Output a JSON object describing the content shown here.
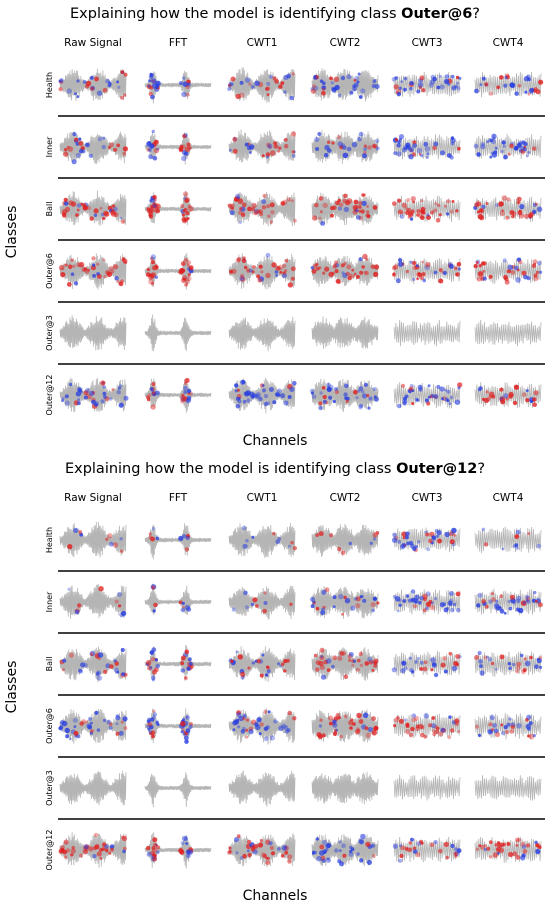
{
  "colors": {
    "signal": "#b5b5b5",
    "positive": "#e02020",
    "negative": "#2a3fe0",
    "separator": "#000000"
  },
  "chart_data": [
    {
      "type": "heatmap",
      "title_prefix": "Explaining how the model is identifying class ",
      "title_class": "Outer@6",
      "title_suffix": "?",
      "xlabel": "Channels",
      "ylabel": "Classes",
      "columns": [
        "Raw Signal",
        "FFT",
        "CWT1",
        "CWT2",
        "CWT3",
        "CWT4"
      ],
      "rows": [
        "Health",
        "Inner",
        "Ball",
        "Outer@6",
        "Outer@3",
        "Outer@12"
      ],
      "attribution_dominant": [
        [
          "mixed",
          "mixed",
          "mixed",
          "negative",
          "negative",
          "mixed"
        ],
        [
          "mixed",
          "mixed",
          "mixed",
          "mixed",
          "negative",
          "negative"
        ],
        [
          "positive",
          "positive",
          "positive",
          "positive",
          "positive",
          "positive"
        ],
        [
          "positive",
          "positive",
          "positive",
          "positive",
          "positive",
          "positive"
        ],
        [
          "none",
          "none",
          "none",
          "none",
          "none",
          "none"
        ],
        [
          "negative",
          "mixed",
          "negative",
          "negative",
          "negative",
          "mixed"
        ]
      ]
    },
    {
      "type": "heatmap",
      "title_prefix": "Explaining how the model is identifying class ",
      "title_class": "Outer@12",
      "title_suffix": "?",
      "xlabel": "Channels",
      "ylabel": "Classes",
      "columns": [
        "Raw Signal",
        "FFT",
        "CWT1",
        "CWT2",
        "CWT3",
        "CWT4"
      ],
      "rows": [
        "Health",
        "Inner",
        "Ball",
        "Outer@6",
        "Outer@3",
        "Outer@12"
      ],
      "attribution_dominant": [
        [
          "sparse",
          "sparse",
          "sparse",
          "sparse",
          "negative",
          "sparse"
        ],
        [
          "sparse",
          "sparse",
          "sparse",
          "mixed",
          "negative",
          "negative"
        ],
        [
          "mixed",
          "mixed",
          "mixed",
          "positive",
          "mixed",
          "mixed"
        ],
        [
          "negative",
          "negative",
          "negative",
          "positive",
          "positive",
          "mixed"
        ],
        [
          "none",
          "none",
          "none",
          "none",
          "none",
          "none"
        ],
        [
          "positive",
          "mixed",
          "positive",
          "negative",
          "mixed",
          "positive"
        ]
      ]
    }
  ]
}
